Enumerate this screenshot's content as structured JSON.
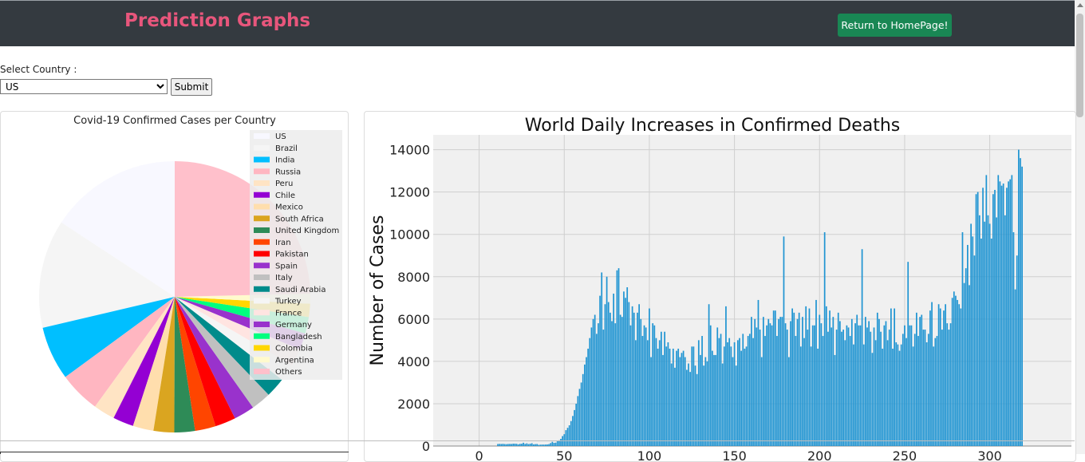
{
  "header": {
    "title": "Prediction Graphs",
    "home_button": "Return to HomePage!"
  },
  "form": {
    "label": "Select Country :",
    "selected": "US",
    "submit": "Submit"
  },
  "colors": {
    "navbar": "#343a40",
    "brand": "#e8567c",
    "home_button": "#198754",
    "bar": "#1f94d2"
  },
  "chart_data": [
    {
      "type": "pie",
      "title": "Covid-19 Confirmed Cases per Country",
      "legend_position": "top-right",
      "slices": [
        {
          "label": "US",
          "value": 16.0,
          "color": "#f8f8ff"
        },
        {
          "label": "Brazil",
          "value": 13.1,
          "color": "#f5f5f5"
        },
        {
          "label": "India",
          "value": 6.5,
          "color": "#00bfff"
        },
        {
          "label": "Russia",
          "value": 5.0,
          "color": "#ffb6c1"
        },
        {
          "label": "Peru",
          "value": 2.6,
          "color": "#ffe4c4"
        },
        {
          "label": "Chile",
          "value": 2.5,
          "color": "#9400d3"
        },
        {
          "label": "Mexico",
          "value": 2.5,
          "color": "#ffdead"
        },
        {
          "label": "South Africa",
          "value": 2.5,
          "color": "#daa520"
        },
        {
          "label": "United Kingdom",
          "value": 2.5,
          "color": "#2e8b57"
        },
        {
          "label": "Iran",
          "value": 2.5,
          "color": "#ff4500"
        },
        {
          "label": "Pakistan",
          "value": 2.5,
          "color": "#ff0000"
        },
        {
          "label": "Spain",
          "value": 2.5,
          "color": "#9932cc"
        },
        {
          "label": "Italy",
          "value": 2.4,
          "color": "#c0c0c0"
        },
        {
          "label": "Saudi Arabia",
          "value": 2.4,
          "color": "#008b8b"
        },
        {
          "label": "Turkey",
          "value": 2.1,
          "color": "#f5f5f5"
        },
        {
          "label": "France",
          "value": 2.1,
          "color": "#ffe4e1"
        },
        {
          "label": "Germany",
          "value": 2.0,
          "color": "#9932cc"
        },
        {
          "label": "Bangladesh",
          "value": 2.0,
          "color": "#00ff7f"
        },
        {
          "label": "Colombia",
          "value": 1.6,
          "color": "#ffd700"
        },
        {
          "label": "Argentina",
          "value": 1.2,
          "color": "#fffacd"
        },
        {
          "label": "Others",
          "value": 25.0,
          "color": "#ffc0cb"
        }
      ]
    },
    {
      "type": "bar",
      "title": "World Daily Increases in Confirmed Deaths",
      "ylabel": "Number of Cases",
      "xlabel": "",
      "xlim": [
        -27,
        348
      ],
      "ylim": [
        0,
        14700
      ],
      "yticks": [
        0,
        2000,
        4000,
        6000,
        8000,
        10000,
        12000,
        14000
      ],
      "xticks": [
        0,
        50,
        100,
        150,
        200,
        250,
        300
      ],
      "grid": true,
      "x_start": 0,
      "values": [
        0,
        0,
        0,
        0,
        0,
        0,
        0,
        0,
        0,
        0,
        0,
        97,
        102,
        97,
        105,
        93,
        88,
        97,
        100,
        98,
        113,
        112,
        105,
        80,
        104,
        109,
        155,
        99,
        127,
        92,
        110,
        132,
        80,
        90,
        95,
        57,
        65,
        70,
        68,
        72,
        76,
        90,
        140,
        200,
        150,
        160,
        230,
        270,
        340,
        470,
        560,
        750,
        860,
        980,
        1180,
        1420,
        1700,
        2000,
        2360,
        2700,
        3000,
        3400,
        3850,
        4200,
        4600,
        5100,
        5600,
        6000,
        6200,
        5300,
        5800,
        7100,
        8200,
        5500,
        6700,
        8000,
        6800,
        6300,
        5900,
        7200,
        5800,
        8300,
        8400,
        6200,
        6100,
        7300,
        7000,
        7500,
        6800,
        5700,
        6600,
        6300,
        5000,
        6300,
        6700,
        6000,
        5200,
        5700,
        5600,
        5000,
        6500,
        4200,
        5800,
        5700,
        5100,
        4600,
        5000,
        5400,
        4300,
        5400,
        4700,
        4900,
        4600,
        3900,
        4600,
        3700,
        4500,
        4600,
        4200,
        4400,
        4500,
        4200,
        3600,
        3900,
        3500,
        4700,
        4700,
        3800,
        3400,
        5000,
        4300,
        5200,
        3800,
        4200,
        4000,
        6700,
        5700,
        4500,
        4300,
        4300,
        5600,
        5100,
        5300,
        3900,
        4700,
        6600,
        4900,
        5100,
        4700,
        4200,
        4900,
        3800,
        5000,
        5100,
        4500,
        5300,
        4600,
        4700,
        5200,
        5300,
        6100,
        5100,
        6000,
        5600,
        6900,
        5500,
        4200,
        6100,
        5200,
        5700,
        6000,
        5800,
        5700,
        6400,
        6400,
        5200,
        6000,
        6100,
        6100,
        9900,
        5800,
        5500,
        4200,
        5900,
        6500,
        6300,
        5200,
        6000,
        6300,
        4700,
        6100,
        5100,
        6600,
        5500,
        6500,
        4700,
        5700,
        5700,
        6900,
        4600,
        6200,
        5800,
        5200,
        10100,
        6600,
        5400,
        6400,
        5600,
        6100,
        4300,
        5500,
        6300,
        5900,
        5400,
        5500,
        5000,
        5700,
        5600,
        5200,
        6000,
        4800,
        5800,
        6200,
        5700,
        5700,
        9300,
        4800,
        6100,
        5600,
        5900,
        5400,
        4400,
        5600,
        5000,
        6300,
        6000,
        5400,
        4600,
        5700,
        5900,
        5000,
        5500,
        6500,
        4600,
        6500,
        4900,
        4800,
        4500,
        4800,
        5300,
        5700,
        5100,
        8700,
        5700,
        5700,
        4700,
        5300,
        6300,
        5200,
        6100,
        6200,
        5500,
        5500,
        4900,
        5300,
        6400,
        6800,
        4700,
        5100,
        5200,
        6700,
        6500,
        5500,
        6400,
        6700,
        5800,
        5500,
        5800,
        7000,
        7300,
        7100,
        6900,
        6700,
        6500,
        10100,
        7700,
        8400,
        9500,
        7600,
        10500,
        9900,
        9000,
        11900,
        12000,
        10900,
        9800,
        12200,
        10600,
        12800,
        10900,
        10500,
        9800,
        11900,
        12100,
        10800,
        12800,
        12500,
        12300,
        12400,
        10900,
        12200,
        12500,
        12600,
        12800,
        10100,
        7400,
        9000,
        14000,
        13600,
        13200
      ]
    }
  ]
}
